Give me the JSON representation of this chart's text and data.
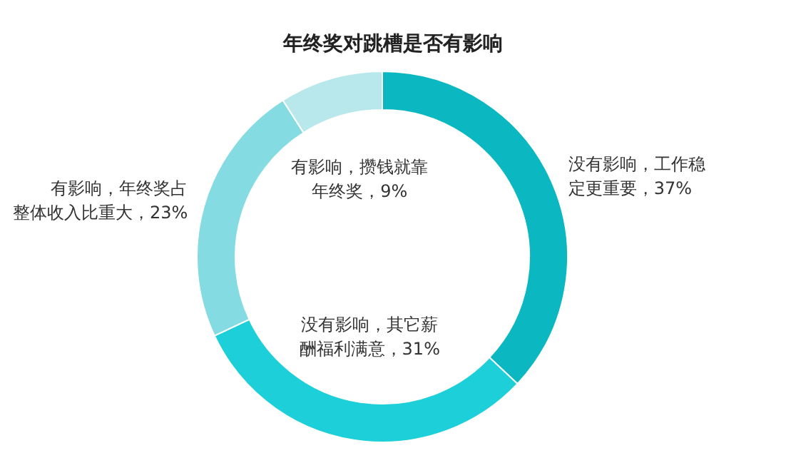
{
  "chart_data": {
    "type": "donut",
    "title": "年终奖对跳槽是否有影响",
    "categories": [
      "没有影响，工作稳定更重要",
      "没有影响，其它薪酬福利满意",
      "有影响，年终奖占整体收入比重大",
      "有影响，攒钱就靠年终奖"
    ],
    "values": [
      37,
      31,
      23,
      9
    ],
    "colors": [
      "#0bb8c1",
      "#1ccfd9",
      "#84dce2",
      "#b8e8ec"
    ],
    "value_labels": [
      "37%",
      "31%",
      "23%",
      "9%"
    ],
    "legend": false
  }
}
